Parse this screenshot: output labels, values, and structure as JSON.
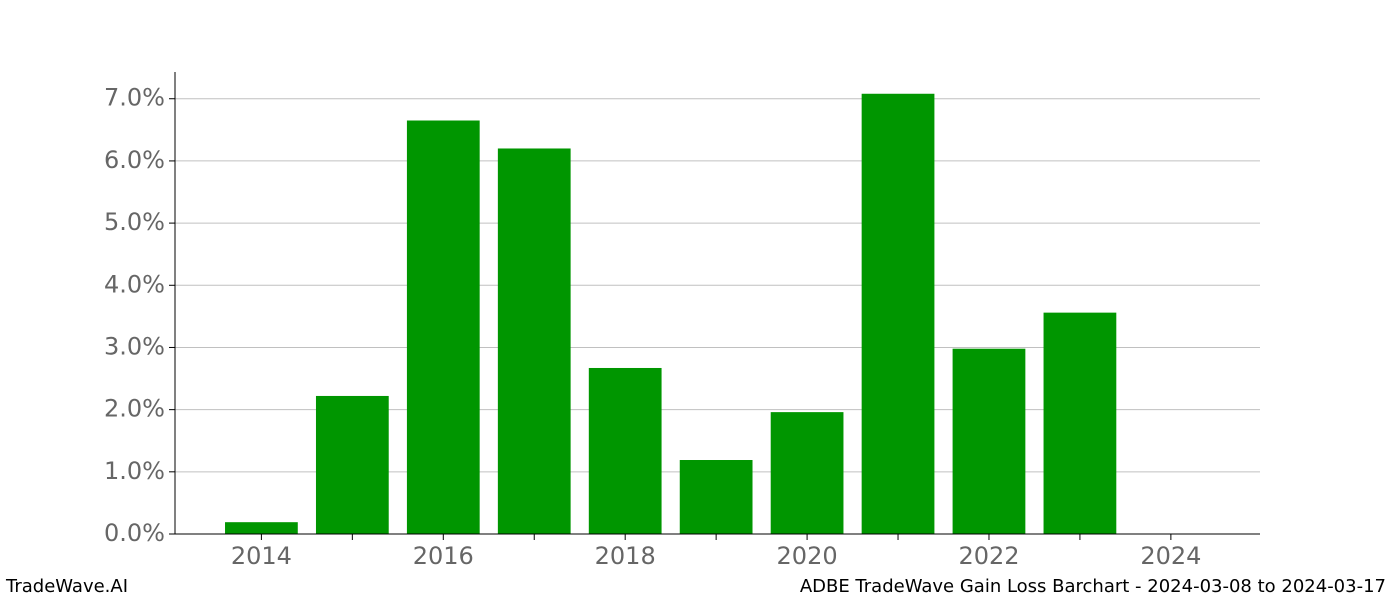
{
  "chart_data": {
    "type": "bar",
    "x": [
      2014,
      2015,
      2016,
      2017,
      2018,
      2019,
      2020,
      2021,
      2022,
      2023
    ],
    "values": [
      0.19,
      2.22,
      6.65,
      6.2,
      2.67,
      1.19,
      1.96,
      7.08,
      2.98,
      3.56
    ],
    "color": "#009600",
    "bar_width": 0.8,
    "xlim": [
      2013.05,
      2024.98
    ],
    "xticks": [
      2014,
      2016,
      2018,
      2020,
      2022,
      2024
    ],
    "xminor_ticks": [
      2015,
      2017,
      2019,
      2021,
      2023
    ],
    "ylim": [
      0,
      7.43
    ],
    "yticks": [
      {
        "value": 0,
        "label": "0.0%"
      },
      {
        "value": 1,
        "label": "1.0%"
      },
      {
        "value": 2,
        "label": "2.0%"
      },
      {
        "value": 3,
        "label": "3.0%"
      },
      {
        "value": 4,
        "label": "4.0%"
      },
      {
        "value": 5,
        "label": "5.0%"
      },
      {
        "value": 6,
        "label": "6.0%"
      },
      {
        "value": 7,
        "label": "7.0%"
      }
    ],
    "grid": true,
    "watermark": "TradeWave.AI",
    "footer_title": "ADBE TradeWave Gain Loss Barchart - 2024-03-08 to 2024-03-17"
  }
}
